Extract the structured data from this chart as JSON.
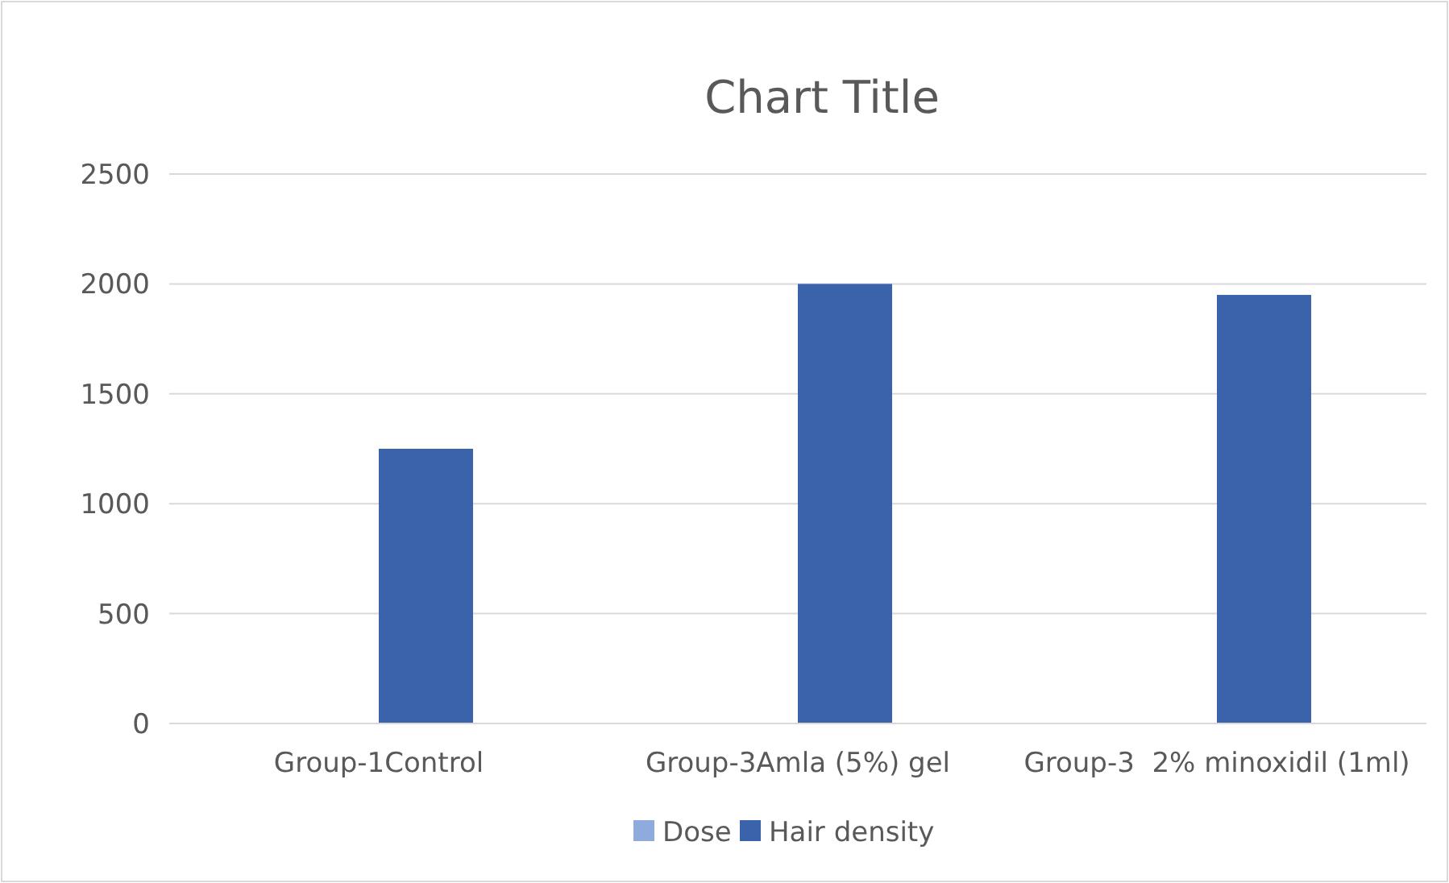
{
  "chart_data": {
    "type": "bar",
    "title": "Chart Title",
    "categories": [
      "Group-1Control",
      "Group-3Amla (5%) gel",
      "Group-3  2% minoxidil (1ml)"
    ],
    "series": [
      {
        "name": "Dose",
        "color": "#8faadc",
        "values": [
          null,
          null,
          null
        ]
      },
      {
        "name": "Hair density",
        "color": "#3a63ac",
        "values": [
          1250,
          2000,
          1950
        ]
      }
    ],
    "ylim": [
      0,
      2500
    ],
    "yticks": [
      0,
      500,
      1000,
      1500,
      2000,
      2500
    ],
    "grid": "y",
    "legend": "bottom"
  }
}
